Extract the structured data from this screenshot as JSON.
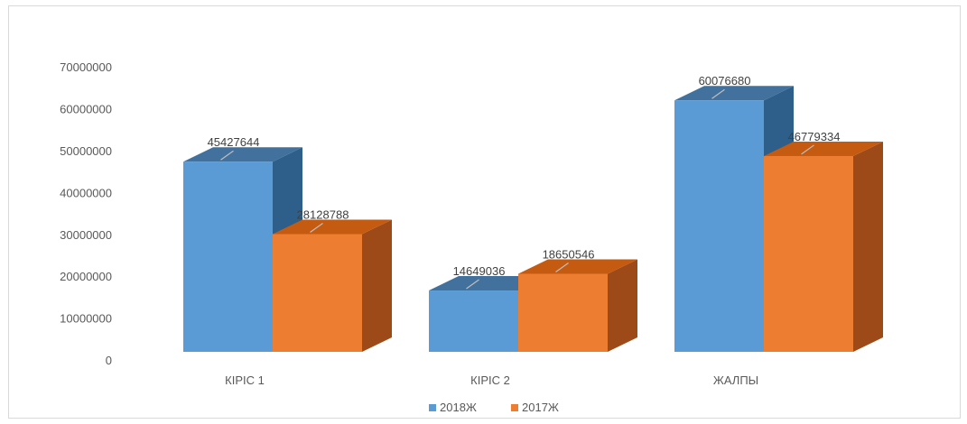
{
  "chart_data": {
    "type": "bar",
    "title": "",
    "xlabel": "",
    "ylabel": "",
    "categories": [
      "КІРІС 1",
      "КІРІС 2",
      "ЖАЛПЫ"
    ],
    "series": [
      {
        "name": "2018Ж",
        "values": [
          45427644,
          14649036,
          60076680
        ],
        "color": "#5b9bd5",
        "top_color": "#41719c",
        "side_color": "#2e5f8a"
      },
      {
        "name": "2017Ж",
        "values": [
          28128788,
          18650546,
          46779334
        ],
        "color": "#ed7d31",
        "top_color": "#c55a11",
        "side_color": "#9e4a18"
      }
    ],
    "data_labels": [
      [
        "45427644",
        "14649036",
        "60076680"
      ],
      [
        "28128788",
        "18650546",
        "46779334"
      ]
    ],
    "ylim": [
      0,
      70000000
    ],
    "yticks": [
      "0",
      "10000000",
      "20000000",
      "30000000",
      "40000000",
      "50000000",
      "60000000",
      "70000000"
    ],
    "grid": false,
    "legend_position": "bottom"
  }
}
